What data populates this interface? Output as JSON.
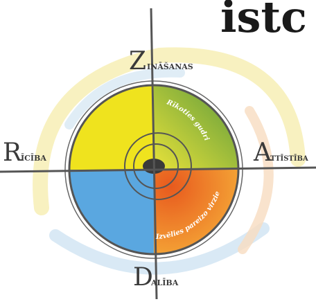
{
  "title": "istc",
  "labels": {
    "top": {
      "initial": "Z",
      "rest": "INĀŠANAS"
    },
    "left": {
      "initial": "R",
      "rest": "ĪCĪBA"
    },
    "right": {
      "initial": "A",
      "rest": "TTĪSTĪBA"
    },
    "bottom": {
      "initial": "D",
      "rest": "ALĪBA"
    }
  },
  "inner": {
    "upper": "Rīkoties gudri",
    "lower": "Izvēlies pareizo virzienu"
  }
}
